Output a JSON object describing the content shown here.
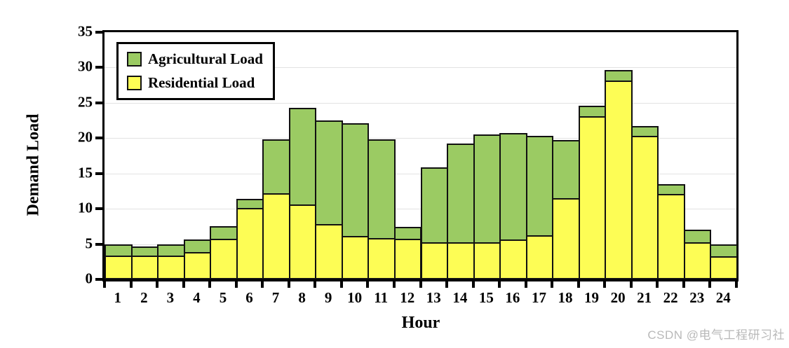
{
  "watermark": "CSDN @电气工程研习社",
  "chart_data": {
    "type": "bar",
    "subtype": "stacked-column",
    "title": "",
    "xlabel": "Hour",
    "ylabel": "Demand Load",
    "categories": [
      1,
      2,
      3,
      4,
      5,
      6,
      7,
      8,
      9,
      10,
      11,
      12,
      13,
      14,
      15,
      16,
      17,
      18,
      19,
      20,
      21,
      22,
      23,
      24
    ],
    "series": [
      {
        "name": "Residential Load",
        "color": "#fdfd55",
        "values": [
          3.4,
          3.4,
          3.4,
          3.9,
          5.8,
          10.1,
          12.2,
          10.6,
          7.8,
          6.1,
          5.9,
          5.8,
          5.3,
          5.3,
          5.3,
          5.7,
          6.2,
          11.5,
          23.1,
          28.2,
          20.3,
          12.1,
          5.3,
          3.3
        ]
      },
      {
        "name": "Agricultural Load",
        "color": "#9bcb63",
        "values": [
          1.6,
          1.3,
          1.6,
          1.8,
          1.7,
          1.3,
          7.6,
          13.7,
          14.7,
          16.0,
          13.9,
          1.6,
          10.6,
          13.9,
          15.2,
          15.0,
          14.1,
          8.2,
          1.5,
          1.4,
          1.4,
          1.4,
          1.7,
          1.7
        ]
      }
    ],
    "stack_totals": [
      5.0,
      4.7,
      5.0,
      5.7,
      7.5,
      11.4,
      19.8,
      24.3,
      22.5,
      22.1,
      19.8,
      7.4,
      15.9,
      19.2,
      20.5,
      20.7,
      20.3,
      19.7,
      24.6,
      29.6,
      21.7,
      13.5,
      7.0,
      5.0
    ],
    "ylim": [
      0,
      35
    ],
    "y_ticks": [
      0,
      5,
      10,
      15,
      20,
      25,
      30,
      35
    ],
    "grid": true,
    "grid_color": "#e2e2e2",
    "bar_border_color": "#111111",
    "axis_color": "#000000",
    "legend_position": "top-left",
    "legend": [
      {
        "label": "Agricultural Load",
        "color": "#9bcb63"
      },
      {
        "label": "Residential Load",
        "color": "#fdfd55"
      }
    ]
  }
}
